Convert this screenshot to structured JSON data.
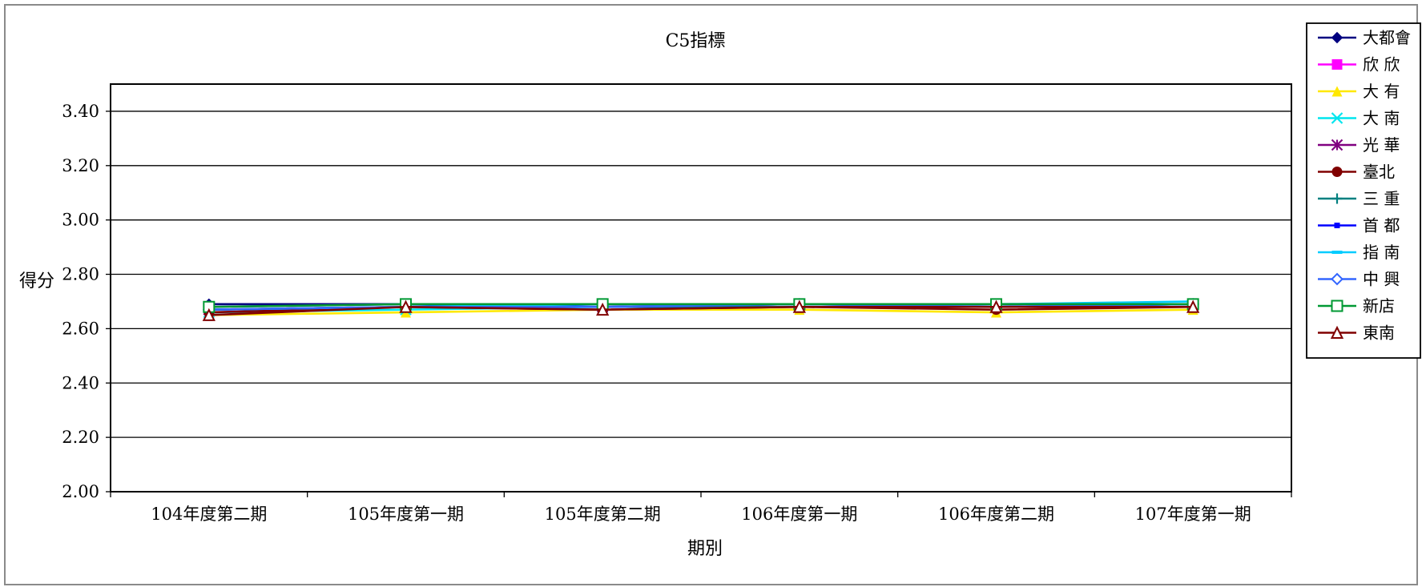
{
  "chart_data": {
    "type": "line",
    "title": "C5指標",
    "xlabel": "期別",
    "ylabel": "得分",
    "ylim": [
      2.0,
      3.5
    ],
    "yticks": [
      2.0,
      2.2,
      2.4,
      2.6,
      2.8,
      3.0,
      3.2,
      3.4
    ],
    "ytick_labels": [
      "2.00",
      "2.20",
      "2.40",
      "2.60",
      "2.80",
      "3.00",
      "3.20",
      "3.40"
    ],
    "categories": [
      "104年度第二期",
      "105年度第一期",
      "105年度第二期",
      "106年度第一期",
      "106年度第二期",
      "107年度第一期"
    ],
    "grid": true,
    "legend_position": "right",
    "series": [
      {
        "name": "大都會",
        "color": "#000080",
        "marker": "diamond",
        "values": [
          2.69,
          2.69,
          2.69,
          2.69,
          2.69,
          2.69
        ]
      },
      {
        "name": "欣 欣",
        "color": "#FF00FF",
        "marker": "square",
        "values": [
          2.67,
          2.68,
          2.68,
          2.68,
          2.68,
          2.68
        ]
      },
      {
        "name": "大 有",
        "color": "#FFE800",
        "marker": "triangle",
        "values": [
          2.65,
          2.66,
          2.67,
          2.67,
          2.66,
          2.67
        ]
      },
      {
        "name": "大 南",
        "color": "#00E5EE",
        "marker": "x",
        "values": [
          2.66,
          2.67,
          2.68,
          2.68,
          2.68,
          2.69
        ]
      },
      {
        "name": "光 華",
        "color": "#800080",
        "marker": "star",
        "values": [
          2.67,
          2.68,
          2.68,
          2.69,
          2.69,
          2.69
        ]
      },
      {
        "name": "臺北",
        "color": "#800000",
        "marker": "circle",
        "values": [
          2.66,
          2.68,
          2.67,
          2.68,
          2.67,
          2.68
        ]
      },
      {
        "name": "三 重",
        "color": "#008080",
        "marker": "plus",
        "values": [
          2.67,
          2.68,
          2.68,
          2.68,
          2.68,
          2.69
        ]
      },
      {
        "name": "首 都",
        "color": "#0000FF",
        "marker": "dot",
        "values": [
          2.68,
          2.69,
          2.68,
          2.69,
          2.68,
          2.69
        ]
      },
      {
        "name": "指 南",
        "color": "#00CCFF",
        "marker": "dash",
        "values": [
          2.67,
          2.68,
          2.69,
          2.69,
          2.69,
          2.7
        ]
      },
      {
        "name": "中 興",
        "color": "#3366FF",
        "marker": "diamond-open",
        "values": [
          2.67,
          2.68,
          2.68,
          2.69,
          2.68,
          2.69
        ]
      },
      {
        "name": "新店",
        "color": "#009933",
        "marker": "square-open",
        "values": [
          2.68,
          2.69,
          2.69,
          2.69,
          2.69,
          2.69
        ]
      },
      {
        "name": "東南",
        "color": "#800000",
        "marker": "triangle-open",
        "values": [
          2.65,
          2.68,
          2.67,
          2.68,
          2.68,
          2.68
        ]
      }
    ]
  }
}
